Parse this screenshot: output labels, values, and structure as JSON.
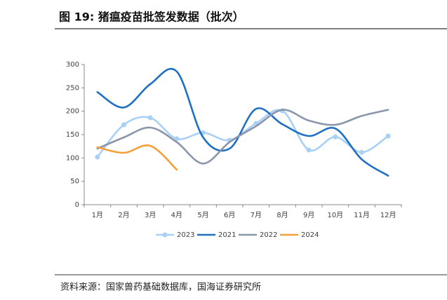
{
  "title": "图 19:  猪瘟疫苗批签发数据（批次）",
  "source": "资料来源：国家兽药基础数据库，国海证券研究所",
  "chart_data": {
    "type": "line",
    "categories": [
      "1月",
      "2月",
      "3月",
      "4月",
      "5月",
      "6月",
      "7月",
      "8月",
      "9月",
      "10月",
      "11月",
      "12月"
    ],
    "ylim": [
      0,
      300
    ],
    "yticks": [
      0,
      50,
      100,
      150,
      200,
      250,
      300
    ],
    "series": [
      {
        "name": "2023",
        "color": "#a9d0f5",
        "markers": true,
        "values": [
          102,
          171,
          186,
          141,
          154,
          138,
          174,
          201,
          117,
          145,
          112,
          147
        ]
      },
      {
        "name": "2021",
        "color": "#1f6fc5",
        "values": [
          241,
          208,
          258,
          285,
          144,
          120,
          205,
          172,
          147,
          163,
          97,
          62
        ]
      },
      {
        "name": "2022",
        "color": "#8a96aa",
        "values": [
          120,
          144,
          165,
          134,
          88,
          134,
          168,
          203,
          180,
          171,
          190,
          203
        ]
      },
      {
        "name": "2024",
        "color": "#f4a03a",
        "values": [
          123,
          111,
          126,
          75,
          null,
          null,
          null,
          null,
          null,
          null,
          null,
          null
        ]
      }
    ]
  }
}
